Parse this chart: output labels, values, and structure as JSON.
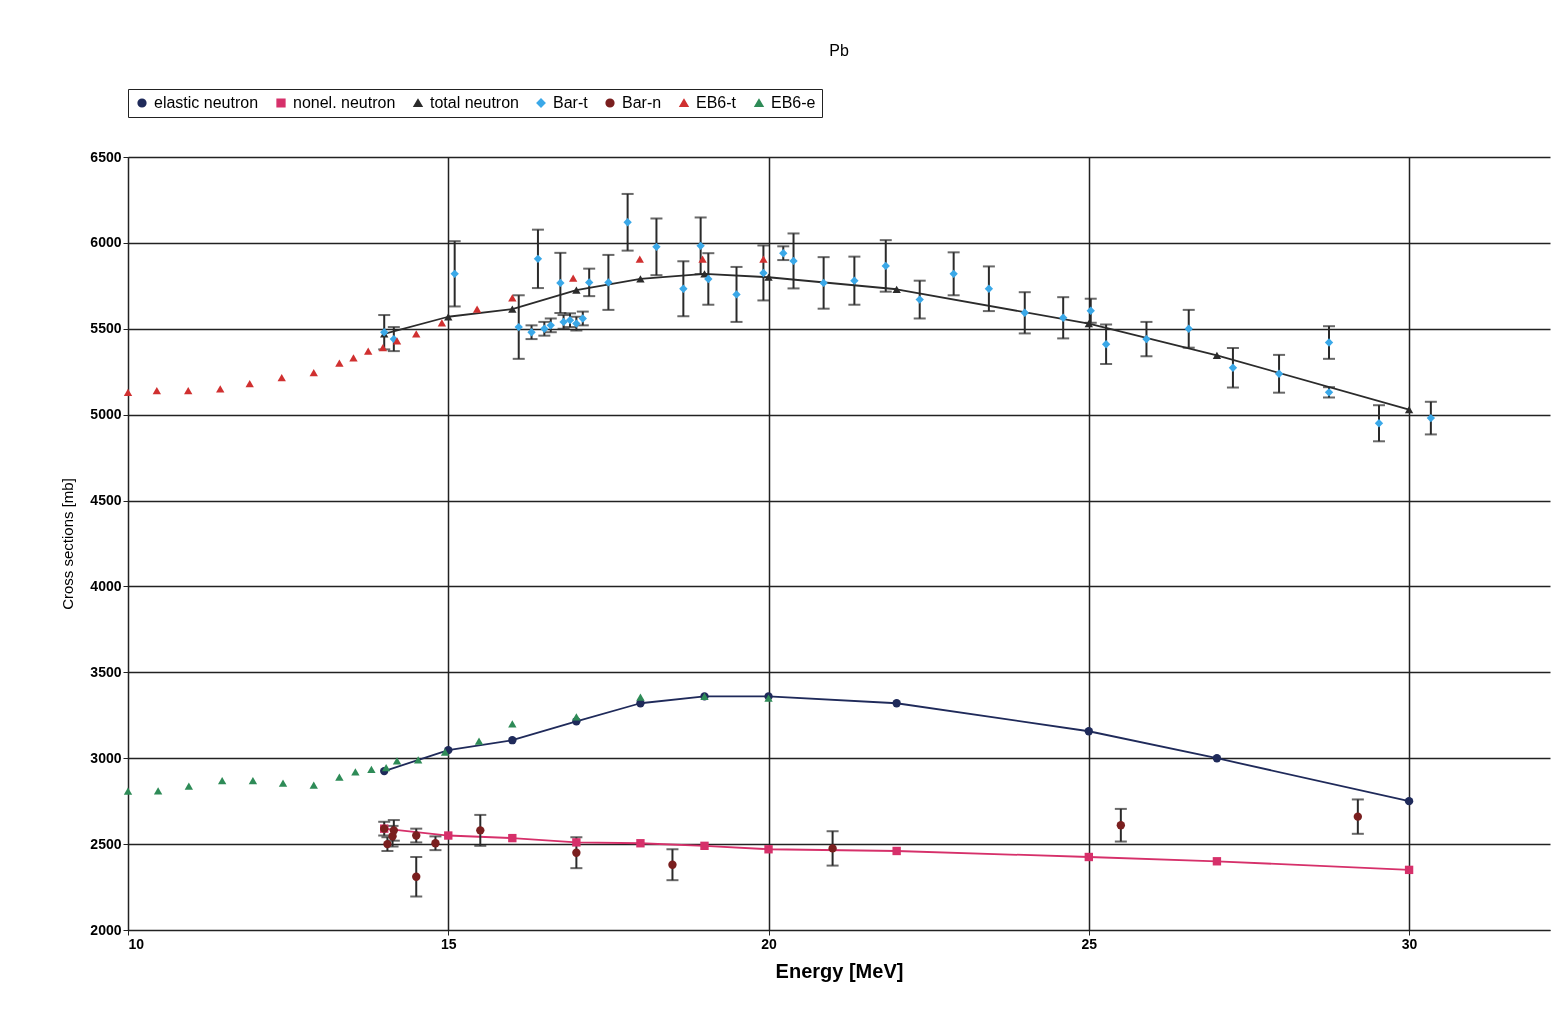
{
  "chart_data": {
    "type": "scatter",
    "title": "Pb",
    "xlabel": "Energy [MeV]",
    "ylabel": "Cross sections [mb]",
    "xlim": [
      10,
      32.2
    ],
    "xticks": [
      10,
      15,
      20,
      25,
      30
    ],
    "ylim": [
      2000,
      6500
    ],
    "yticks": [
      2000,
      2500,
      3000,
      3500,
      4000,
      4500,
      5000,
      5500,
      6000,
      6500
    ],
    "grid": true,
    "legend": "top",
    "series": [
      {
        "name": "elastic neutron",
        "type": "line",
        "marker": "circle",
        "color": "#1f2a5a",
        "x": [
          14,
          15,
          16,
          17,
          18,
          19,
          20,
          22,
          25,
          27,
          30
        ],
        "values": [
          2925,
          3047,
          3105,
          3215,
          3320,
          3360,
          3360,
          3320,
          3157,
          3000,
          2750
        ]
      },
      {
        "name": "nonel. neutron",
        "type": "line",
        "marker": "square",
        "color": "#d6306a",
        "x": [
          14,
          15,
          16,
          17,
          18,
          19,
          20,
          22,
          25,
          27,
          30
        ],
        "values": [
          2590,
          2550,
          2535,
          2510,
          2505,
          2490,
          2470,
          2460,
          2425,
          2400,
          2350
        ]
      },
      {
        "name": "total neutron",
        "type": "line",
        "marker": "triangle",
        "color": "#2b2b2b",
        "x": [
          14,
          15,
          16,
          17,
          18,
          19,
          20,
          22,
          25,
          27,
          30
        ],
        "values": [
          5470,
          5570,
          5615,
          5725,
          5790,
          5820,
          5800,
          5730,
          5530,
          5345,
          5030
        ]
      },
      {
        "name": "Bar-t",
        "marker": "diamond",
        "color": "#3aa8e8",
        "x": [
          14.0,
          14.15,
          15.1,
          16.1,
          16.3,
          16.4,
          16.5,
          16.6,
          16.75,
          16.8,
          16.9,
          17.0,
          17.1,
          17.2,
          17.5,
          17.8,
          18.25,
          18.67,
          18.94,
          19.06,
          19.5,
          19.92,
          20.23,
          20.39,
          20.86,
          21.34,
          21.83,
          22.36,
          22.89,
          23.44,
          24.0,
          24.6,
          25.03,
          25.27,
          25.9,
          26.56,
          27.25,
          27.97,
          28.75,
          28.75,
          29.53,
          30.34
        ],
        "values": [
          5480,
          5440,
          5820,
          5510,
          5480,
          5907,
          5500,
          5520,
          5767,
          5540,
          5550,
          5530,
          5560,
          5770,
          5770,
          6120,
          5977,
          5733,
          5983,
          5790,
          5700,
          5825,
          5940,
          5895,
          5767,
          5780,
          5866,
          5670,
          5820,
          5733,
          5593,
          5564,
          5605,
          5410,
          5440,
          5500,
          5273,
          5238,
          5420,
          5130,
          4950,
          4980
        ],
        "errors": [
          100,
          70,
          190,
          185,
          40,
          170,
          40,
          40,
          175,
          40,
          40,
          40,
          40,
          80,
          160,
          165,
          165,
          160,
          165,
          150,
          160,
          160,
          40,
          160,
          150,
          140,
          150,
          110,
          125,
          130,
          120,
          120,
          70,
          115,
          100,
          110,
          115,
          110,
          95,
          30,
          105,
          95
        ]
      },
      {
        "name": "Bar-n",
        "marker": "circle",
        "color": "#7a1f1f",
        "x": [
          14.0,
          14.05,
          14.13,
          14.15,
          14.5,
          14.5,
          14.8,
          15.5,
          17.0,
          18.5,
          21.0,
          25.5,
          29.2
        ],
        "values": [
          2590,
          2500,
          2546,
          2580,
          2310,
          2550,
          2505,
          2580,
          2450,
          2380,
          2475,
          2610,
          2660
        ],
        "errors": [
          40,
          40,
          60,
          60,
          115,
          40,
          40,
          90,
          90,
          90,
          100,
          95,
          100
        ]
      },
      {
        "name": "EB6-t",
        "marker": "triangle",
        "color": "#d03030",
        "x": [
          10.0,
          10.45,
          10.94,
          11.44,
          11.9,
          12.4,
          12.9,
          13.3,
          13.52,
          13.75,
          13.98,
          14.2,
          14.5,
          14.9,
          15.45,
          16.0,
          16.95,
          17.99,
          18.97,
          19.92
        ],
        "values": [
          5130,
          5140,
          5140,
          5150,
          5180,
          5215,
          5245,
          5300,
          5330,
          5370,
          5390,
          5430,
          5470,
          5535,
          5615,
          5680,
          5795,
          5905,
          5905,
          5905
        ]
      },
      {
        "name": "EB6-e",
        "marker": "triangle",
        "color": "#2e8b57",
        "x": [
          10.0,
          10.47,
          10.95,
          11.47,
          11.95,
          12.42,
          12.9,
          13.3,
          13.55,
          13.8,
          14.03,
          14.2,
          14.53,
          14.95,
          15.48,
          16.0,
          17.0,
          18.0,
          19.0,
          20.0
        ],
        "values": [
          2808,
          2810,
          2837,
          2870,
          2870,
          2855,
          2843,
          2890,
          2920,
          2935,
          2945,
          2985,
          2990,
          3035,
          3100,
          3200,
          3240,
          3355,
          3360,
          3350
        ]
      }
    ]
  }
}
